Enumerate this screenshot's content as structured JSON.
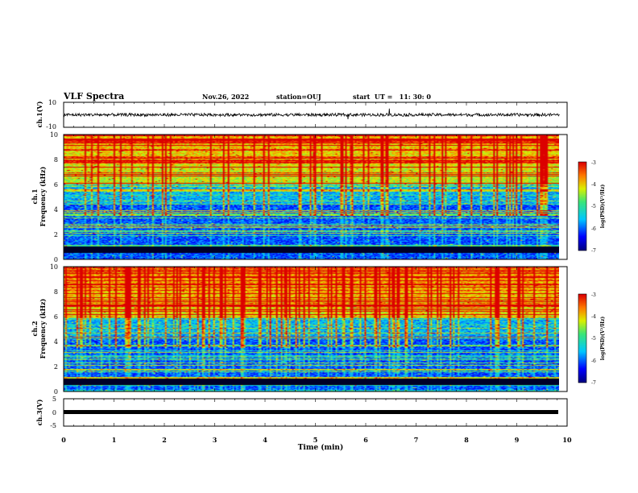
{
  "header": {
    "title": "VLF Spectra",
    "date": "Nov.26, 2022",
    "station": "station=OUJ",
    "start": "start  UT =   11: 30: 0"
  },
  "chart_data": [
    {
      "type": "line",
      "name": "ch1-waveform",
      "ylabel": "ch.1(V)",
      "ylim": [
        -10,
        10
      ],
      "yticks": [
        "10",
        "-10"
      ],
      "baseline": 0,
      "noise_amplitude": 1.2,
      "color": "#000000"
    },
    {
      "type": "heatmap",
      "name": "ch1-spectrogram",
      "ylabel": "ch.1",
      "ylabel2": "Frequency (kHz)",
      "ylim": [
        0,
        10
      ],
      "yticks": [
        "0",
        "2",
        "4",
        "6",
        "8",
        "10"
      ],
      "colorbar": {
        "label": "log(PSD)(V²/Hz)",
        "range": [
          -7,
          -3
        ],
        "ticks": [
          "-3",
          "-4",
          "-5",
          "-6",
          "-7"
        ]
      }
    },
    {
      "type": "heatmap",
      "name": "ch2-spectrogram",
      "ylabel": "ch.2",
      "ylabel2": "Frequency (kHz)",
      "ylim": [
        0,
        10
      ],
      "yticks": [
        "0",
        "2",
        "4",
        "6",
        "8",
        "10"
      ],
      "colorbar": {
        "label": "log(PSD)(V²/Hz)",
        "range": [
          -7,
          -3
        ],
        "ticks": [
          "-3",
          "-4",
          "-5",
          "-6",
          "-7"
        ]
      }
    },
    {
      "type": "line",
      "name": "ch3-waveform",
      "ylabel": "ch.3(V)",
      "ylim": [
        -5,
        5
      ],
      "yticks": [
        "5",
        "0",
        "-5"
      ],
      "baseline": 0,
      "color": "#000000"
    }
  ],
  "xaxis": {
    "label": "Time (min)",
    "xlim": [
      0,
      10
    ],
    "ticks": [
      "0",
      "1",
      "2",
      "3",
      "4",
      "5",
      "6",
      "7",
      "8",
      "9",
      "10"
    ],
    "data_end": 9.85
  }
}
